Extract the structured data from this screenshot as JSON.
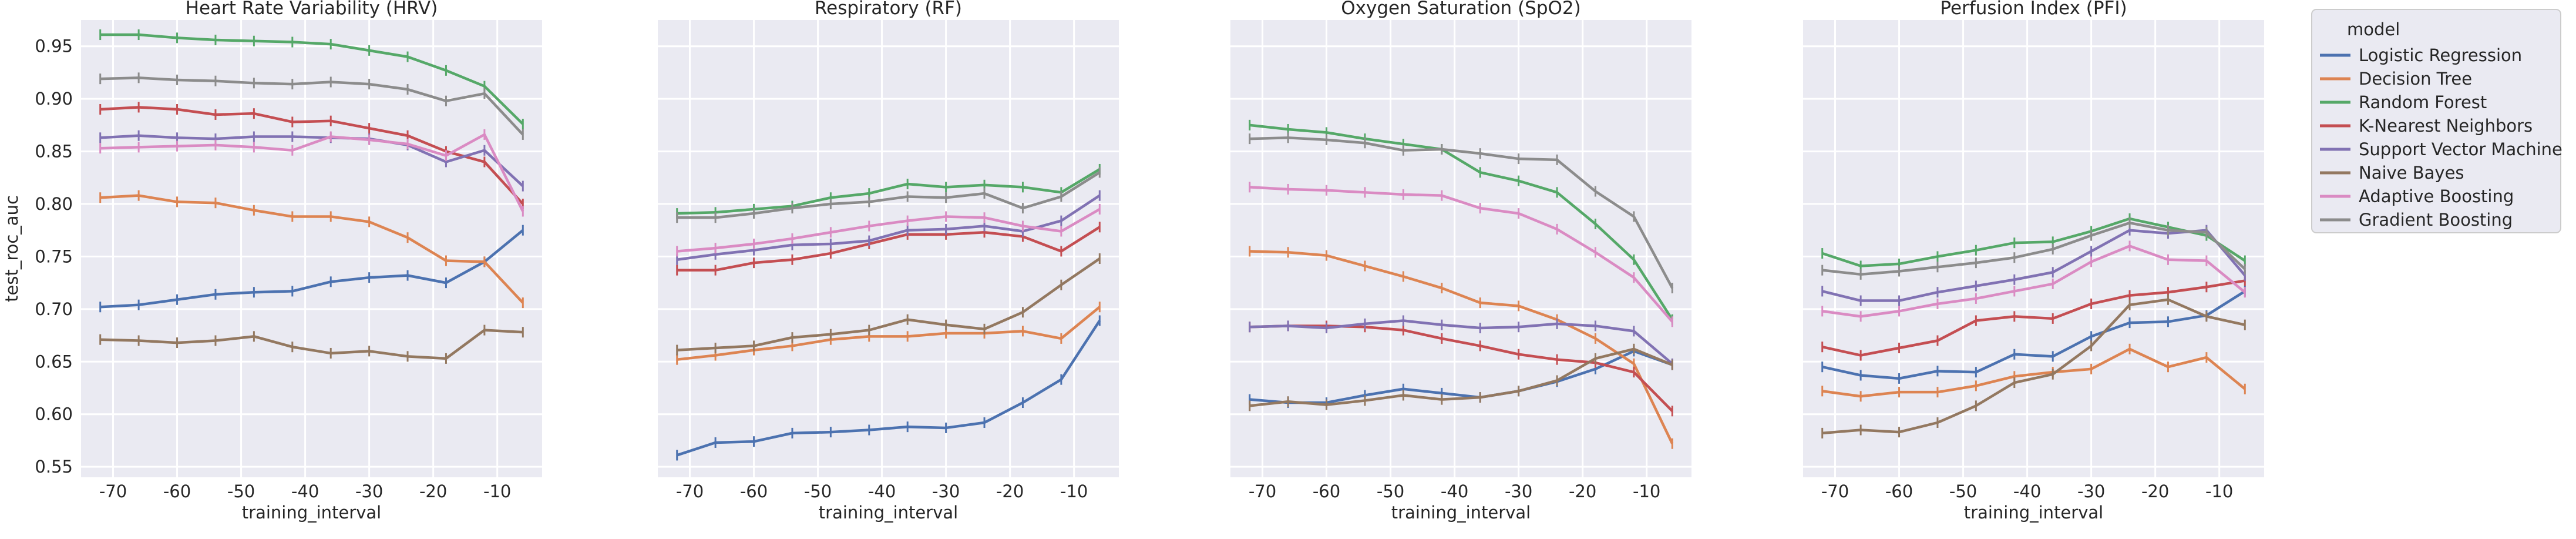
{
  "chart_data": {
    "type": "line",
    "shared_x": [
      -72,
      -66,
      -60,
      -54,
      -48,
      -42,
      -36,
      -30,
      -24,
      -18,
      -12,
      -6
    ],
    "xticks": [
      -70,
      -60,
      -50,
      -40,
      -30,
      -20,
      -10
    ],
    "xlabel": "training_interval",
    "ylabel": "test_roc_auc",
    "ylim": [
      0.54,
      0.975
    ],
    "yticks": [
      0.55,
      0.6,
      0.65,
      0.7,
      0.75,
      0.8,
      0.85,
      0.9,
      0.95
    ],
    "ytick_labels": [
      "0.55",
      "0.60",
      "0.65",
      "0.70",
      "0.75",
      "0.80",
      "0.85",
      "0.90",
      "0.95"
    ],
    "grid": true,
    "legend": {
      "title": "model",
      "placement": "right-outside",
      "entries": [
        {
          "name": "Logistic Regression",
          "color": "#4c72b0"
        },
        {
          "name": "Decision Tree",
          "color": "#dd8452"
        },
        {
          "name": "Random Forest",
          "color": "#55a868"
        },
        {
          "name": "K-Nearest Neighbors",
          "color": "#c44e52"
        },
        {
          "name": "Support Vector Machine",
          "color": "#8172b3"
        },
        {
          "name": "Naive Bayes",
          "color": "#937860"
        },
        {
          "name": "Adaptive Boosting",
          "color": "#da8bc3"
        },
        {
          "name": "Gradient Boosting",
          "color": "#8c8c8c"
        }
      ]
    },
    "panels": [
      {
        "title": "Heart Rate Variability (HRV)",
        "series": [
          {
            "name": "Logistic Regression",
            "values": [
              0.702,
              0.704,
              0.709,
              0.714,
              0.716,
              0.717,
              0.726,
              0.73,
              0.732,
              0.725,
              0.745,
              0.775
            ]
          },
          {
            "name": "Decision Tree",
            "values": [
              0.806,
              0.808,
              0.802,
              0.801,
              0.794,
              0.788,
              0.788,
              0.783,
              0.768,
              0.746,
              0.745,
              0.706
            ]
          },
          {
            "name": "Random Forest",
            "values": [
              0.961,
              0.961,
              0.958,
              0.956,
              0.955,
              0.954,
              0.952,
              0.946,
              0.94,
              0.927,
              0.912,
              0.876
            ]
          },
          {
            "name": "K-Nearest Neighbors",
            "values": [
              0.89,
              0.892,
              0.89,
              0.885,
              0.886,
              0.878,
              0.879,
              0.872,
              0.865,
              0.85,
              0.84,
              0.8
            ]
          },
          {
            "name": "Support Vector Machine",
            "values": [
              0.863,
              0.865,
              0.863,
              0.862,
              0.864,
              0.864,
              0.863,
              0.862,
              0.856,
              0.84,
              0.851,
              0.817
            ]
          },
          {
            "name": "Naive Bayes",
            "values": [
              0.671,
              0.67,
              0.668,
              0.67,
              0.674,
              0.664,
              0.658,
              0.66,
              0.655,
              0.653,
              0.68,
              0.678
            ]
          },
          {
            "name": "Adaptive Boosting",
            "values": [
              0.853,
              0.854,
              0.855,
              0.856,
              0.854,
              0.851,
              0.864,
              0.861,
              0.857,
              0.846,
              0.866,
              0.793
            ]
          },
          {
            "name": "Gradient Boosting",
            "values": [
              0.919,
              0.92,
              0.918,
              0.917,
              0.915,
              0.914,
              0.916,
              0.914,
              0.909,
              0.898,
              0.905,
              0.866
            ]
          }
        ]
      },
      {
        "title": "Respiratory (RF)",
        "series": [
          {
            "name": "Logistic Regression",
            "values": [
              0.561,
              0.573,
              0.574,
              0.582,
              0.583,
              0.585,
              0.588,
              0.587,
              0.592,
              0.611,
              0.633,
              0.689
            ]
          },
          {
            "name": "Decision Tree",
            "values": [
              0.652,
              0.656,
              0.661,
              0.665,
              0.671,
              0.674,
              0.674,
              0.677,
              0.677,
              0.679,
              0.672,
              0.702
            ]
          },
          {
            "name": "Random Forest",
            "values": [
              0.791,
              0.792,
              0.795,
              0.798,
              0.806,
              0.81,
              0.819,
              0.816,
              0.818,
              0.816,
              0.811,
              0.833
            ]
          },
          {
            "name": "K-Nearest Neighbors",
            "values": [
              0.737,
              0.737,
              0.744,
              0.747,
              0.753,
              0.762,
              0.771,
              0.771,
              0.773,
              0.769,
              0.755,
              0.778
            ]
          },
          {
            "name": "Support Vector Machine",
            "values": [
              0.747,
              0.752,
              0.756,
              0.761,
              0.762,
              0.765,
              0.775,
              0.776,
              0.779,
              0.774,
              0.784,
              0.808
            ]
          },
          {
            "name": "Naive Bayes",
            "values": [
              0.661,
              0.663,
              0.665,
              0.673,
              0.676,
              0.68,
              0.69,
              0.685,
              0.681,
              0.697,
              0.723,
              0.748
            ]
          },
          {
            "name": "Adaptive Boosting",
            "values": [
              0.755,
              0.758,
              0.762,
              0.767,
              0.773,
              0.779,
              0.784,
              0.788,
              0.787,
              0.779,
              0.774,
              0.795
            ]
          },
          {
            "name": "Gradient Boosting",
            "values": [
              0.787,
              0.787,
              0.791,
              0.796,
              0.8,
              0.802,
              0.807,
              0.806,
              0.81,
              0.796,
              0.807,
              0.83
            ]
          }
        ]
      },
      {
        "title": "Oxygen Saturation (SpO2)",
        "series": [
          {
            "name": "Logistic Regression",
            "values": [
              0.614,
              0.611,
              0.611,
              0.618,
              0.624,
              0.62,
              0.616,
              0.622,
              0.631,
              0.643,
              0.66,
              0.647
            ]
          },
          {
            "name": "Decision Tree",
            "values": [
              0.755,
              0.754,
              0.751,
              0.741,
              0.731,
              0.72,
              0.706,
              0.703,
              0.69,
              0.672,
              0.648,
              0.572
            ]
          },
          {
            "name": "Random Forest",
            "values": [
              0.875,
              0.871,
              0.868,
              0.862,
              0.857,
              0.852,
              0.83,
              0.822,
              0.811,
              0.781,
              0.747,
              0.69
            ]
          },
          {
            "name": "K-Nearest Neighbors",
            "values": [
              0.683,
              0.684,
              0.684,
              0.683,
              0.68,
              0.672,
              0.665,
              0.657,
              0.652,
              0.649,
              0.64,
              0.603
            ]
          },
          {
            "name": "Support Vector Machine",
            "values": [
              0.683,
              0.684,
              0.682,
              0.686,
              0.689,
              0.685,
              0.682,
              0.683,
              0.686,
              0.684,
              0.679,
              0.648
            ]
          },
          {
            "name": "Naive Bayes",
            "values": [
              0.608,
              0.612,
              0.609,
              0.613,
              0.618,
              0.614,
              0.616,
              0.622,
              0.632,
              0.653,
              0.662,
              0.647
            ]
          },
          {
            "name": "Adaptive Boosting",
            "values": [
              0.816,
              0.814,
              0.813,
              0.811,
              0.809,
              0.808,
              0.796,
              0.791,
              0.776,
              0.754,
              0.73,
              0.688
            ]
          },
          {
            "name": "Gradient Boosting",
            "values": [
              0.862,
              0.863,
              0.861,
              0.858,
              0.851,
              0.852,
              0.848,
              0.843,
              0.842,
              0.812,
              0.788,
              0.72
            ]
          }
        ]
      },
      {
        "title": "Perfusion Index (PFI)",
        "series": [
          {
            "name": "Logistic Regression",
            "values": [
              0.645,
              0.637,
              0.634,
              0.641,
              0.64,
              0.657,
              0.655,
              0.674,
              0.687,
              0.688,
              0.694,
              0.717
            ]
          },
          {
            "name": "Decision Tree",
            "values": [
              0.622,
              0.617,
              0.621,
              0.621,
              0.627,
              0.636,
              0.64,
              0.643,
              0.662,
              0.645,
              0.654,
              0.624
            ]
          },
          {
            "name": "Random Forest",
            "values": [
              0.753,
              0.741,
              0.743,
              0.75,
              0.756,
              0.763,
              0.764,
              0.774,
              0.786,
              0.778,
              0.77,
              0.746
            ]
          },
          {
            "name": "K-Nearest Neighbors",
            "values": [
              0.664,
              0.656,
              0.663,
              0.67,
              0.689,
              0.693,
              0.691,
              0.705,
              0.713,
              0.716,
              0.721,
              0.727
            ]
          },
          {
            "name": "Support Vector Machine",
            "values": [
              0.717,
              0.708,
              0.708,
              0.716,
              0.722,
              0.728,
              0.735,
              0.755,
              0.775,
              0.772,
              0.775,
              0.732
            ]
          },
          {
            "name": "Naive Bayes",
            "values": [
              0.582,
              0.585,
              0.583,
              0.592,
              0.608,
              0.63,
              0.638,
              0.665,
              0.704,
              0.709,
              0.693,
              0.685
            ]
          },
          {
            "name": "Adaptive Boosting",
            "values": [
              0.698,
              0.693,
              0.698,
              0.705,
              0.71,
              0.717,
              0.724,
              0.745,
              0.76,
              0.747,
              0.746,
              0.716
            ]
          },
          {
            "name": "Gradient Boosting",
            "values": [
              0.737,
              0.733,
              0.736,
              0.74,
              0.744,
              0.749,
              0.757,
              0.77,
              0.782,
              0.775,
              0.773,
              0.738
            ]
          }
        ]
      }
    ]
  }
}
